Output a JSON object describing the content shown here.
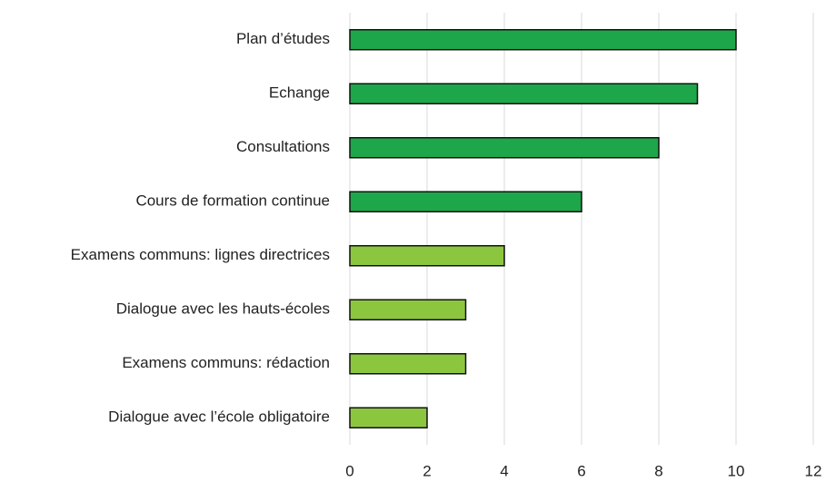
{
  "chart_data": {
    "type": "hbar",
    "categories": [
      "Plan d’études",
      "Echange",
      "Consultations",
      "Cours de formation continue",
      "Examens communs: lignes directrices",
      "Dialogue avec les hauts-écoles",
      "Examens communs: rédaction",
      "Dialogue avec l’école obligatoire"
    ],
    "values": [
      10,
      9,
      8,
      6,
      4,
      3,
      3,
      2
    ],
    "colors": [
      "#1ea64a",
      "#1ea64a",
      "#1ea64a",
      "#1ea64a",
      "#8cc63f",
      "#8cc63f",
      "#8cc63f",
      "#8cc63f"
    ],
    "xlim": [
      0,
      12
    ],
    "xticks": [
      0,
      2,
      4,
      6,
      8,
      10,
      12
    ],
    "grid": true
  }
}
